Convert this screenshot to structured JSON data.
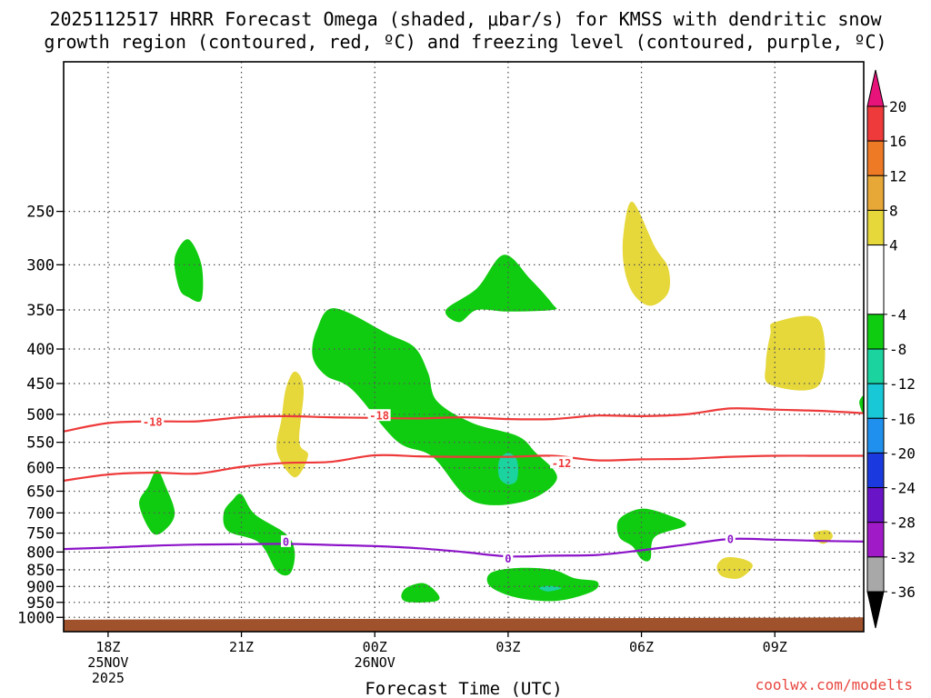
{
  "title_line1": "2025112517 HRRR Forecast Omega (shaded, μbar/s) for KMSS with dendritic snow",
  "title_line2": "growth region (contoured, red, ºC) and freezing level (contoured, purple, ºC)",
  "credit": "coolwx.com/modelts",
  "chart_data": {
    "type": "time-height",
    "xlabel": "Forecast Time (UTC)",
    "ylabel": "",
    "x_range_hours": [
      -1,
      17
    ],
    "y_range_mb": [
      1050,
      150
    ],
    "x_ticks": [
      {
        "h": 0,
        "lines": [
          "18Z",
          "25NOV",
          "2025"
        ]
      },
      {
        "h": 3,
        "lines": [
          "21Z"
        ]
      },
      {
        "h": 6,
        "lines": [
          "00Z",
          "26NOV"
        ]
      },
      {
        "h": 9,
        "lines": [
          "03Z"
        ]
      },
      {
        "h": 12,
        "lines": [
          "06Z"
        ]
      },
      {
        "h": 15,
        "lines": [
          "09Z"
        ]
      }
    ],
    "y_ticks": [
      250,
      300,
      350,
      400,
      450,
      500,
      550,
      600,
      650,
      700,
      750,
      800,
      850,
      900,
      950,
      1000
    ],
    "colorbar": {
      "bands": [
        {
          "lo": 20,
          "hi": 24,
          "color": "#e8137a"
        },
        {
          "lo": 16,
          "hi": 20,
          "color": "#ee3a3a"
        },
        {
          "lo": 12,
          "hi": 16,
          "color": "#ee7a26"
        },
        {
          "lo": 8,
          "hi": 12,
          "color": "#e8a838"
        },
        {
          "lo": 4,
          "hi": 8,
          "color": "#e6d83a"
        },
        {
          "lo": -4,
          "hi": 4,
          "color": "#ffffff"
        },
        {
          "lo": -8,
          "hi": -4,
          "color": "#10cc10"
        },
        {
          "lo": -12,
          "hi": -8,
          "color": "#1ad39e"
        },
        {
          "lo": -16,
          "hi": -12,
          "color": "#19c8d6"
        },
        {
          "lo": -20,
          "hi": -16,
          "color": "#1f90ee"
        },
        {
          "lo": -24,
          "hi": -20,
          "color": "#1a3ae0"
        },
        {
          "lo": -28,
          "hi": -24,
          "color": "#6a14c8"
        },
        {
          "lo": -32,
          "hi": -28,
          "color": "#a01ac8"
        },
        {
          "lo": -36,
          "hi": -32,
          "color": "#a8a8a8"
        },
        {
          "lo": -40,
          "hi": -36,
          "color": "#000000"
        }
      ],
      "labels": [
        20,
        16,
        12,
        8,
        4,
        -4,
        -8,
        -12,
        -16,
        -20,
        -24,
        -28,
        -32,
        -36
      ]
    },
    "ground": {
      "color": "#a0522d",
      "pressure_start": 1008,
      "pressure_end": 1000
    },
    "omega_regions": [
      {
        "value": -6,
        "color": "#10cc10",
        "points": [
          [
            1.5,
            293
          ],
          [
            1.8,
            275
          ],
          [
            2.1,
            300
          ],
          [
            2.1,
            338
          ],
          [
            1.8,
            335
          ],
          [
            1.6,
            325
          ]
        ]
      },
      {
        "value": -6,
        "color": "#10cc10",
        "points": [
          [
            4.7,
            374
          ],
          [
            5.1,
            348
          ],
          [
            6.3,
            380
          ],
          [
            6.9,
            398
          ],
          [
            7.2,
            434
          ],
          [
            7.4,
            478
          ],
          [
            8.2,
            515
          ],
          [
            9.2,
            538
          ],
          [
            9.6,
            568
          ],
          [
            10.1,
            622
          ],
          [
            9.4,
            672
          ],
          [
            8.2,
            672
          ],
          [
            7.3,
            578
          ],
          [
            6.5,
            548
          ],
          [
            5.5,
            460
          ],
          [
            4.9,
            438
          ],
          [
            4.6,
            410
          ]
        ]
      },
      {
        "value": -6,
        "color": "#10cc10",
        "points": [
          [
            7.6,
            350
          ],
          [
            8.3,
            325
          ],
          [
            8.9,
            290
          ],
          [
            9.5,
            315
          ],
          [
            10.0,
            343
          ],
          [
            10.0,
            350
          ],
          [
            9.0,
            352
          ],
          [
            8.3,
            350
          ],
          [
            7.9,
            365
          ]
        ]
      },
      {
        "value": -6,
        "color": "#10cc10",
        "points": [
          [
            0.7,
            680
          ],
          [
            0.9,
            640
          ],
          [
            1.1,
            605
          ],
          [
            1.3,
            640
          ],
          [
            1.5,
            700
          ],
          [
            1.3,
            740
          ],
          [
            1.0,
            750
          ]
        ]
      },
      {
        "value": -6,
        "color": "#10cc10",
        "points": [
          [
            2.6,
            700
          ],
          [
            2.8,
            670
          ],
          [
            3.0,
            657
          ],
          [
            3.3,
            703
          ],
          [
            4.0,
            752
          ],
          [
            4.2,
            800
          ],
          [
            4.1,
            860
          ],
          [
            3.8,
            855
          ],
          [
            3.4,
            775
          ],
          [
            2.7,
            745
          ]
        ]
      },
      {
        "value": -6,
        "color": "#10cc10",
        "points": [
          [
            6.7,
            905
          ],
          [
            7.1,
            890
          ],
          [
            7.4,
            920
          ],
          [
            7.4,
            945
          ],
          [
            6.8,
            950
          ],
          [
            6.6,
            935
          ]
        ]
      },
      {
        "value": -6,
        "color": "#10cc10",
        "points": [
          [
            8.6,
            860
          ],
          [
            9.2,
            845
          ],
          [
            10.0,
            850
          ],
          [
            10.5,
            875
          ],
          [
            11.0,
            885
          ],
          [
            10.9,
            915
          ],
          [
            10.1,
            945
          ],
          [
            9.2,
            935
          ],
          [
            8.6,
            900
          ]
        ]
      },
      {
        "value": -6,
        "color": "#10cc10",
        "points": [
          [
            11.5,
            715
          ],
          [
            12.0,
            690
          ],
          [
            12.6,
            705
          ],
          [
            13.0,
            730
          ],
          [
            12.3,
            760
          ],
          [
            12.2,
            820
          ],
          [
            12.0,
            820
          ],
          [
            11.8,
            785
          ],
          [
            11.5,
            760
          ]
        ]
      },
      {
        "value": -6,
        "color": "#10cc10",
        "points": [
          [
            17.0,
            470
          ],
          [
            16.9,
            480
          ],
          [
            17.0,
            500
          ]
        ]
      },
      {
        "value": -10,
        "color": "#1ad39e",
        "points": [
          [
            8.8,
            585
          ],
          [
            9.0,
            570
          ],
          [
            9.2,
            585
          ],
          [
            9.2,
            625
          ],
          [
            9.0,
            635
          ],
          [
            8.8,
            620
          ]
        ]
      },
      {
        "value": -10,
        "color": "#1ad39e",
        "points": [
          [
            9.7,
            905
          ],
          [
            9.9,
            898
          ],
          [
            10.2,
            905
          ],
          [
            9.9,
            915
          ]
        ]
      },
      {
        "value": 6,
        "color": "#e6d83a",
        "points": [
          [
            4.0,
            458
          ],
          [
            4.2,
            432
          ],
          [
            4.4,
            458
          ],
          [
            4.3,
            548
          ],
          [
            4.5,
            575
          ],
          [
            4.2,
            620
          ],
          [
            3.8,
            568
          ],
          [
            3.9,
            508
          ]
        ]
      },
      {
        "value": 6,
        "color": "#e6d83a",
        "points": [
          [
            11.6,
            268
          ],
          [
            11.8,
            242
          ],
          [
            12.3,
            282
          ],
          [
            12.6,
            303
          ],
          [
            12.6,
            330
          ],
          [
            12.2,
            345
          ],
          [
            11.8,
            330
          ],
          [
            11.6,
            300
          ]
        ]
      },
      {
        "value": 6,
        "color": "#e6d83a",
        "points": [
          [
            14.9,
            380
          ],
          [
            15.0,
            365
          ],
          [
            16.0,
            363
          ],
          [
            16.0,
            452
          ],
          [
            14.9,
            452
          ],
          [
            14.8,
            420
          ]
        ]
      },
      {
        "value": 6,
        "color": "#e6d83a",
        "points": [
          [
            13.7,
            838
          ],
          [
            13.9,
            815
          ],
          [
            14.3,
            820
          ],
          [
            14.5,
            840
          ],
          [
            14.2,
            875
          ],
          [
            13.8,
            868
          ]
        ]
      },
      {
        "value": 6,
        "color": "#e6d83a",
        "points": [
          [
            15.9,
            748
          ],
          [
            16.2,
            743
          ],
          [
            16.3,
            760
          ],
          [
            16.1,
            778
          ],
          [
            15.9,
            765
          ]
        ]
      }
    ],
    "contours": [
      {
        "name": "dgz-minus18",
        "value": -18,
        "label": "-18",
        "color": "#ee3a3a",
        "label_points": [
          [
            1.0,
            513
          ],
          [
            6.1,
            502
          ]
        ],
        "points": [
          [
            -1.0,
            530
          ],
          [
            0.0,
            515
          ],
          [
            1.0,
            512
          ],
          [
            2.0,
            512
          ],
          [
            3.0,
            505
          ],
          [
            4.0,
            503
          ],
          [
            5.0,
            505
          ],
          [
            6.0,
            506
          ],
          [
            7.0,
            507
          ],
          [
            8.0,
            505
          ],
          [
            9.0,
            508
          ],
          [
            10.0,
            508
          ],
          [
            11.0,
            502
          ],
          [
            12.0,
            503
          ],
          [
            13.0,
            500
          ],
          [
            14.0,
            490
          ],
          [
            15.0,
            492
          ],
          [
            16.0,
            494
          ],
          [
            17.0,
            498
          ]
        ]
      },
      {
        "name": "dgz-minus12",
        "value": -12,
        "label": "-12",
        "color": "#ee3a3a",
        "label_points": [
          [
            10.2,
            590
          ]
        ],
        "points": [
          [
            -1.0,
            627
          ],
          [
            0.0,
            614
          ],
          [
            1.0,
            610
          ],
          [
            2.0,
            612
          ],
          [
            3.0,
            598
          ],
          [
            4.0,
            590
          ],
          [
            5.0,
            588
          ],
          [
            6.0,
            575
          ],
          [
            7.0,
            577
          ],
          [
            8.0,
            578
          ],
          [
            9.0,
            578
          ],
          [
            10.0,
            576
          ],
          [
            11.0,
            585
          ],
          [
            12.0,
            583
          ],
          [
            13.0,
            582
          ],
          [
            14.0,
            578
          ],
          [
            15.0,
            576
          ],
          [
            16.0,
            576
          ],
          [
            17.0,
            576
          ]
        ]
      },
      {
        "name": "freezing-level",
        "value": 0,
        "label": "0",
        "color": "#8c14c8",
        "label_points": [
          [
            4.0,
            772
          ],
          [
            9.0,
            818
          ],
          [
            14.0,
            765
          ]
        ],
        "points": [
          [
            -1.0,
            792
          ],
          [
            0.0,
            788
          ],
          [
            1.0,
            783
          ],
          [
            2.0,
            780
          ],
          [
            3.0,
            779
          ],
          [
            4.0,
            778
          ],
          [
            5.0,
            781
          ],
          [
            6.0,
            784
          ],
          [
            7.0,
            790
          ],
          [
            8.0,
            800
          ],
          [
            9.0,
            812
          ],
          [
            10.0,
            810
          ],
          [
            11.0,
            808
          ],
          [
            12.0,
            795
          ],
          [
            13.0,
            780
          ],
          [
            14.0,
            765
          ],
          [
            15.0,
            767
          ],
          [
            16.0,
            770
          ],
          [
            17.0,
            772
          ]
        ]
      }
    ]
  }
}
